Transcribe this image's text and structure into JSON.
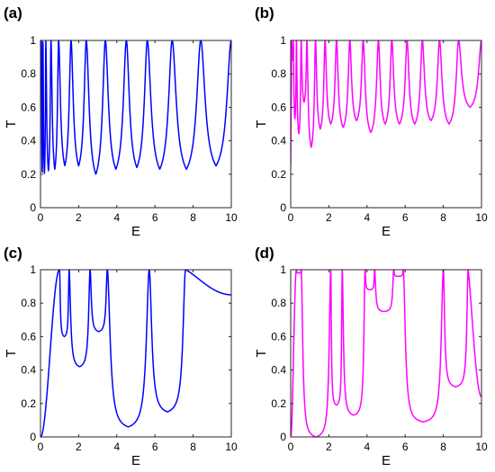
{
  "chart_data": [
    {
      "type": "line",
      "panel_label": "(a)",
      "xlabel": "E",
      "ylabel": "T",
      "xlim": [
        0,
        10
      ],
      "ylim": [
        0,
        1
      ],
      "xticks": [
        "0",
        "2",
        "4",
        "6",
        "8",
        "10"
      ],
      "yticks": [
        "0",
        "0.2",
        "0.4",
        "0.6",
        "0.8",
        "1"
      ],
      "grid": false,
      "series": [
        {
          "color": "#0000ff",
          "peaks": [
            0.05,
            0.13,
            0.28,
            0.55,
            0.95,
            1.6,
            2.4,
            3.4,
            4.5,
            5.6,
            6.9,
            8.4,
            10.0
          ],
          "minima": [
            0.85,
            0.2,
            0.2,
            0.22,
            0.23,
            0.25,
            0.25,
            0.2,
            0.23,
            0.24,
            0.23,
            0.23,
            0.25
          ],
          "width_scale": 0.34
        }
      ]
    },
    {
      "type": "line",
      "panel_label": "(b)",
      "xlabel": "E",
      "ylabel": "T",
      "xlim": [
        0,
        10
      ],
      "ylim": [
        0,
        1
      ],
      "xticks": [
        "0",
        "2",
        "4",
        "6",
        "8",
        "10"
      ],
      "yticks": [
        "0",
        "0.2",
        "0.4",
        "0.6",
        "0.8",
        "1"
      ],
      "grid": false,
      "series": [
        {
          "color": "#ff00ff",
          "peaks": [
            0.05,
            0.14,
            0.3,
            0.55,
            0.85,
            1.3,
            1.8,
            2.4,
            3.1,
            3.8,
            4.6,
            5.3,
            6.1,
            6.9,
            7.8,
            8.8,
            10.0
          ],
          "minima": [
            0.25,
            0.88,
            0.53,
            0.44,
            0.63,
            0.36,
            0.47,
            0.5,
            0.48,
            0.52,
            0.45,
            0.5,
            0.5,
            0.5,
            0.52,
            0.5,
            0.6
          ],
          "width_scale": 0.3
        }
      ]
    },
    {
      "type": "line",
      "panel_label": "(c)",
      "xlabel": "E",
      "ylabel": "T",
      "xlim": [
        0,
        10
      ],
      "ylim": [
        0,
        1
      ],
      "xticks": [
        "0",
        "2",
        "4",
        "6",
        "8",
        "10"
      ],
      "yticks": [
        "0",
        "0.2",
        "0.4",
        "0.6",
        "0.8",
        "1"
      ],
      "grid": false,
      "series": [
        {
          "color": "#0000ff",
          "peaks": [
            1.0,
            1.5,
            2.6,
            3.5,
            5.7,
            7.6
          ],
          "minima": [
            0.0,
            0.6,
            0.42,
            0.63,
            0.06,
            0.15,
            0.13
          ],
          "end_value": 0.85,
          "width_scale": 0.16
        }
      ]
    },
    {
      "type": "line",
      "panel_label": "(d)",
      "xlabel": "E",
      "ylabel": "T",
      "xlim": [
        0,
        10
      ],
      "ylim": [
        0,
        1
      ],
      "xticks": [
        "0",
        "2",
        "4",
        "6",
        "8",
        "10"
      ],
      "yticks": [
        "0",
        "0.2",
        "0.4",
        "0.6",
        "0.8",
        "1"
      ],
      "grid": false,
      "series": [
        {
          "color": "#ff00ff",
          "peaks": [
            0.3,
            0.55,
            2.1,
            2.7,
            3.9,
            4.4,
            5.4,
            5.9,
            8.0,
            9.3
          ],
          "minima": [
            0.0,
            0.98,
            0.0,
            0.19,
            0.13,
            0.88,
            0.75,
            0.96,
            0.09,
            0.3,
            0.2
          ],
          "end_value": 0.24,
          "width_scale": 0.12
        }
      ]
    }
  ]
}
